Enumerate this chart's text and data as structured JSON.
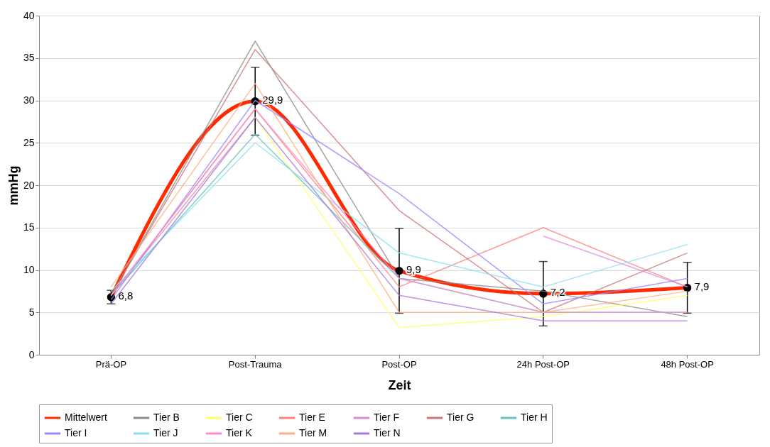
{
  "chart_data": {
    "type": "line",
    "xlabel": "Zeit",
    "ylabel": "mmHg",
    "categories": [
      "Prä-OP",
      "Post-Trauma",
      "Post-OP",
      "24h Post-OP",
      "48h Post-OP"
    ],
    "ylim": [
      0,
      40
    ],
    "yticks": [
      0,
      5,
      10,
      15,
      20,
      25,
      30,
      35,
      40
    ],
    "grid": "y",
    "legend": "bottom",
    "series": [
      {
        "name": "Mittelwert",
        "color": "#ff2a00",
        "values": [
          6.8,
          29.9,
          9.9,
          7.2,
          7.9
        ],
        "errors": [
          0.8,
          4,
          5,
          3.8,
          3
        ],
        "marker": "circle",
        "value_labels": [
          "6,8",
          "29,9",
          "9,9",
          "7,2",
          "7,9"
        ]
      },
      {
        "name": "Tier B",
        "color": "#8c8c8c",
        "values": [
          7,
          37,
          9,
          7.5,
          4.5
        ]
      },
      {
        "name": "Tier C",
        "color": "#ffff66",
        "values": [
          7,
          28,
          3.2,
          4.5,
          7
        ]
      },
      {
        "name": "Tier E",
        "color": "#ff8080",
        "values": [
          7,
          29,
          8,
          15,
          8
        ]
      },
      {
        "name": "Tier F",
        "color": "#dd88dd",
        "values": [
          7,
          28,
          null,
          14,
          8
        ]
      },
      {
        "name": "Tier G",
        "color": "#cc7777",
        "values": [
          7,
          36,
          17,
          5,
          12
        ]
      },
      {
        "name": "Tier H",
        "color": "#66c2c2",
        "values": [
          7,
          26,
          9,
          5,
          5
        ]
      },
      {
        "name": "Tier I",
        "color": "#9988ff",
        "values": [
          6.5,
          30,
          19,
          6,
          9
        ]
      },
      {
        "name": "Tier J",
        "color": "#88e0f0",
        "values": [
          7.5,
          25,
          12,
          8,
          13
        ]
      },
      {
        "name": "Tier K",
        "color": "#ff88cc",
        "values": [
          7,
          29,
          9,
          5,
          5
        ]
      },
      {
        "name": "Tier M",
        "color": "#ffb080",
        "values": [
          8,
          32,
          5,
          5,
          7.5
        ]
      },
      {
        "name": "Tier N",
        "color": "#aa77dd",
        "values": [
          6,
          28,
          7,
          4,
          4
        ]
      }
    ]
  }
}
